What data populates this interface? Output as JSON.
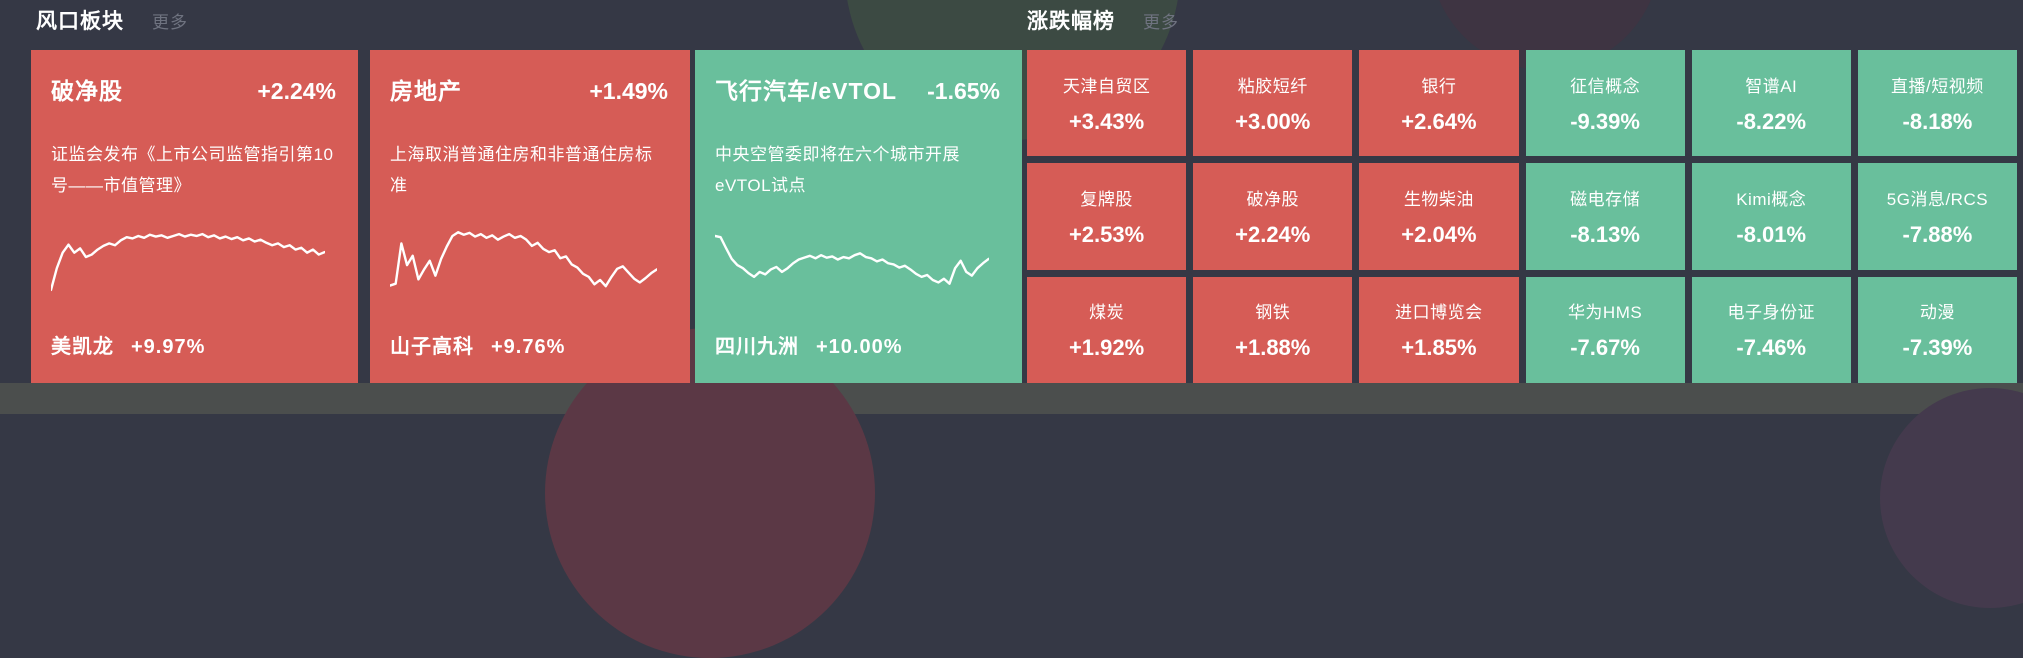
{
  "colors": {
    "up": "#d65c56",
    "down": "#69bf9c",
    "background": "#353845",
    "bottom_strip": "#4b4e4d",
    "muted_text": "#6f7380",
    "spark_line": "#ffffff"
  },
  "sections": {
    "hot": {
      "title": "风口板块",
      "more": "更多"
    },
    "rank": {
      "title": "涨跌幅榜",
      "more": "更多"
    }
  },
  "cards": [
    {
      "title": "破净股",
      "change": "+2.24%",
      "trend": "up",
      "desc": "证监会发布《上市公司监管指引第10号——市值管理》",
      "stock": "美凯龙",
      "stock_change": "+9.97%",
      "spark": [
        95,
        60,
        35,
        22,
        35,
        28,
        42,
        38,
        30,
        24,
        20,
        23,
        15,
        10,
        12,
        8,
        11,
        6,
        9,
        7,
        11,
        8,
        5,
        9,
        6,
        8,
        5,
        10,
        7,
        12,
        9,
        13,
        10,
        15,
        12,
        17,
        14,
        19,
        23,
        20,
        26,
        23,
        30,
        27,
        35,
        30,
        38,
        34
      ]
    },
    {
      "title": "房地产",
      "change": "+1.49%",
      "trend": "up",
      "desc": "上海取消普通住房和非普通住房标准",
      "stock": "山子高科",
      "stock_change": "+9.76%",
      "spark": [
        88,
        85,
        20,
        55,
        40,
        78,
        62,
        48,
        72,
        45,
        25,
        8,
        2,
        6,
        3,
        9,
        5,
        11,
        7,
        14,
        9,
        5,
        11,
        8,
        14,
        24,
        19,
        29,
        34,
        31,
        44,
        41,
        54,
        59,
        69,
        74,
        86,
        79,
        89,
        74,
        61,
        57,
        67,
        77,
        83,
        76,
        68,
        62
      ]
    },
    {
      "title": "飞行汽车/eVTOL",
      "change": "-1.65%",
      "trend": "down",
      "desc": "中央空管委即将在六个城市开展eVTOL试点",
      "stock": "四川九洲",
      "stock_change": "+10.00%",
      "spark": [
        8,
        10,
        28,
        45,
        55,
        60,
        68,
        74,
        66,
        70,
        62,
        58,
        66,
        60,
        52,
        46,
        43,
        40,
        44,
        39,
        43,
        41,
        46,
        42,
        44,
        39,
        36,
        42,
        44,
        49,
        46,
        52,
        54,
        59,
        56,
        62,
        69,
        74,
        71,
        79,
        83,
        77,
        85,
        60,
        48,
        66,
        72,
        60,
        52,
        45
      ]
    }
  ],
  "rank_tiles": [
    {
      "name": "天津自贸区",
      "change": "+3.43%",
      "trend": "up"
    },
    {
      "name": "粘胶短纤",
      "change": "+3.00%",
      "trend": "up"
    },
    {
      "name": "银行",
      "change": "+2.64%",
      "trend": "up"
    },
    {
      "name": "征信概念",
      "change": "-9.39%",
      "trend": "down"
    },
    {
      "name": "智谱AI",
      "change": "-8.22%",
      "trend": "down"
    },
    {
      "name": "直播/短视频",
      "change": "-8.18%",
      "trend": "down"
    },
    {
      "name": "复牌股",
      "change": "+2.53%",
      "trend": "up"
    },
    {
      "name": "破净股",
      "change": "+2.24%",
      "trend": "up"
    },
    {
      "name": "生物柴油",
      "change": "+2.04%",
      "trend": "up"
    },
    {
      "name": "磁电存储",
      "change": "-8.13%",
      "trend": "down"
    },
    {
      "name": "Kimi概念",
      "change": "-8.01%",
      "trend": "down"
    },
    {
      "name": "5G消息/RCS",
      "change": "-7.88%",
      "trend": "down"
    },
    {
      "name": "煤炭",
      "change": "+1.92%",
      "trend": "up"
    },
    {
      "name": "钢铁",
      "change": "+1.88%",
      "trend": "up"
    },
    {
      "name": "进口博览会",
      "change": "+1.85%",
      "trend": "up"
    },
    {
      "name": "华为HMS",
      "change": "-7.67%",
      "trend": "down"
    },
    {
      "name": "电子身份证",
      "change": "-7.46%",
      "trend": "down"
    },
    {
      "name": "动漫",
      "change": "-7.39%",
      "trend": "down"
    }
  ]
}
